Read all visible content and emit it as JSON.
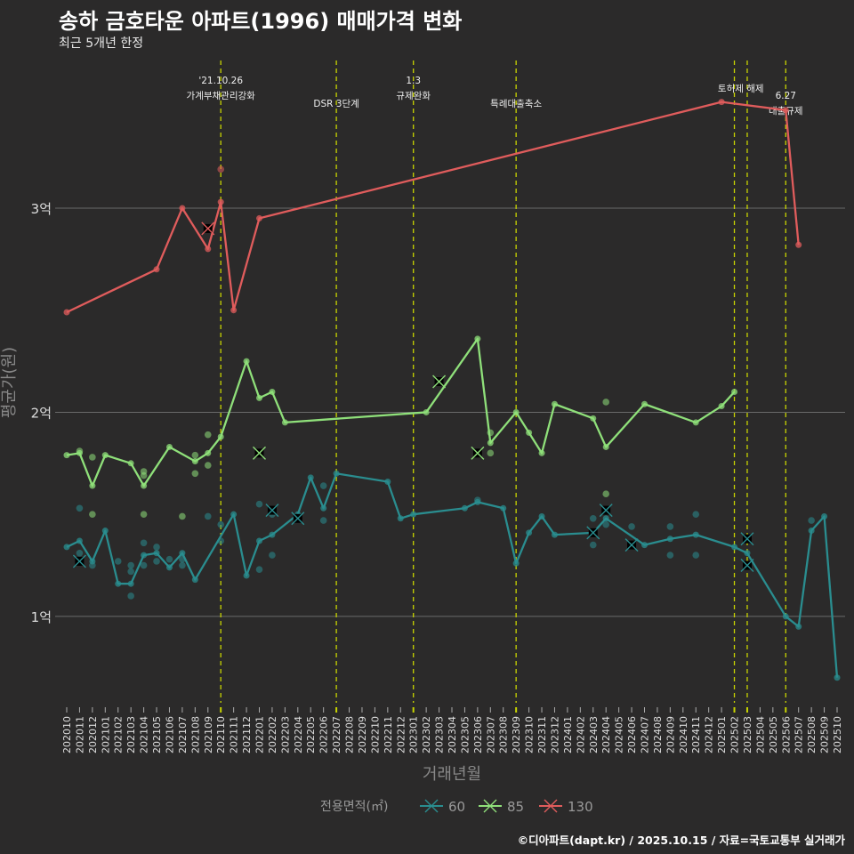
{
  "title": "송하 금호타운 아파트(1996) 매매가격 변화",
  "subtitle": "최근 5개년 한정",
  "footer": "©디아파트(dapt.kr) / 2025.10.15 / 자료=국토교통부 실거래가",
  "chart_data": {
    "type": "line",
    "xlabel": "거래년월",
    "ylabel": "평균가(원)",
    "ylim": [
      0.577,
      3.758
    ],
    "y_ticks": [
      {
        "v": 1,
        "label": "1억"
      },
      {
        "v": 2,
        "label": "2억"
      },
      {
        "v": 3,
        "label": "3억"
      }
    ],
    "x": [
      "202010",
      "202011",
      "202012",
      "202101",
      "202102",
      "202103",
      "202104",
      "202105",
      "202106",
      "202107",
      "202108",
      "202109",
      "202110",
      "202111",
      "202112",
      "202201",
      "202202",
      "202203",
      "202204",
      "202205",
      "202206",
      "202207",
      "202208",
      "202209",
      "202210",
      "202211",
      "202212",
      "202301",
      "202302",
      "202303",
      "202304",
      "202305",
      "202306",
      "202307",
      "202308",
      "202309",
      "202310",
      "202311",
      "202312",
      "202401",
      "202402",
      "202403",
      "202404",
      "202405",
      "202406",
      "202407",
      "202408",
      "202409",
      "202410",
      "202411",
      "202412",
      "202501",
      "202502",
      "202503",
      "202504",
      "202505",
      "202506",
      "202507",
      "202508",
      "202509",
      "202510"
    ],
    "legend": {
      "title": "전용면적(㎡)",
      "position": "bottom"
    },
    "series": [
      {
        "name": "60",
        "color": "#2a8d8f",
        "points": [
          [
            0,
            1.34
          ],
          [
            1,
            1.37
          ],
          [
            2,
            1.27
          ],
          [
            3,
            1.42
          ],
          [
            4,
            1.16
          ],
          [
            5,
            1.16
          ],
          [
            6,
            1.3
          ],
          [
            7,
            1.31
          ],
          [
            8,
            1.24
          ],
          [
            9,
            1.31
          ],
          [
            10,
            1.18
          ],
          [
            13,
            1.5
          ],
          [
            14,
            1.2
          ],
          [
            15,
            1.37
          ],
          [
            16,
            1.4
          ],
          [
            18,
            1.5
          ],
          [
            19,
            1.68
          ],
          [
            20,
            1.53
          ],
          [
            21,
            1.7
          ],
          [
            25,
            1.66
          ],
          [
            26,
            1.48
          ],
          [
            27,
            1.5
          ],
          [
            31,
            1.53
          ],
          [
            32,
            1.56
          ],
          [
            34,
            1.53
          ],
          [
            35,
            1.26
          ],
          [
            36,
            1.41
          ],
          [
            37,
            1.49
          ],
          [
            38,
            1.4
          ],
          [
            41,
            1.41
          ],
          [
            42,
            1.48
          ],
          [
            45,
            1.35
          ],
          [
            47,
            1.38
          ],
          [
            49,
            1.4
          ],
          [
            52,
            1.34
          ],
          [
            53,
            1.31
          ],
          [
            56,
            1.0
          ],
          [
            57,
            0.95
          ],
          [
            58,
            1.42
          ],
          [
            59,
            1.49
          ],
          [
            60,
            0.7
          ]
        ],
        "scatter": [
          [
            1,
            1.53
          ],
          [
            1,
            1.31
          ],
          [
            2,
            1.25
          ],
          [
            4,
            1.27
          ],
          [
            5,
            1.25
          ],
          [
            5,
            1.22
          ],
          [
            5,
            1.1
          ],
          [
            6,
            1.36
          ],
          [
            6,
            1.25
          ],
          [
            7,
            1.34
          ],
          [
            7,
            1.27
          ],
          [
            8,
            1.28
          ],
          [
            9,
            1.28
          ],
          [
            9,
            1.25
          ],
          [
            11,
            1.49
          ],
          [
            12,
            1.45
          ],
          [
            12,
            1.37
          ],
          [
            15,
            1.55
          ],
          [
            15,
            1.23
          ],
          [
            16,
            1.3
          ],
          [
            16,
            1.5
          ],
          [
            20,
            1.47
          ],
          [
            20,
            1.64
          ],
          [
            32,
            1.57
          ],
          [
            41,
            1.48
          ],
          [
            41,
            1.35
          ],
          [
            42,
            1.45
          ],
          [
            44,
            1.44
          ],
          [
            47,
            1.44
          ],
          [
            47,
            1.3
          ],
          [
            49,
            1.5
          ],
          [
            49,
            1.3
          ],
          [
            58,
            1.47
          ]
        ],
        "x_marks": [
          [
            1,
            1.27
          ],
          [
            16,
            1.52
          ],
          [
            18,
            1.48
          ],
          [
            41,
            1.41
          ],
          [
            42,
            1.52
          ],
          [
            44,
            1.35
          ],
          [
            53,
            1.38
          ],
          [
            53,
            1.25
          ]
        ]
      },
      {
        "name": "85",
        "color": "#8fe07a",
        "points": [
          [
            0,
            1.79
          ],
          [
            1,
            1.8
          ],
          [
            2,
            1.64
          ],
          [
            3,
            1.79
          ],
          [
            5,
            1.75
          ],
          [
            6,
            1.64
          ],
          [
            8,
            1.83
          ],
          [
            10,
            1.76
          ],
          [
            11,
            1.8
          ],
          [
            12,
            1.88
          ],
          [
            14,
            2.25
          ],
          [
            15,
            2.07
          ],
          [
            16,
            2.1
          ],
          [
            17,
            1.95
          ],
          [
            28,
            2.0
          ],
          [
            32,
            2.36
          ],
          [
            33,
            1.85
          ],
          [
            35,
            2.0
          ],
          [
            36,
            1.9
          ],
          [
            37,
            1.8
          ],
          [
            38,
            2.04
          ],
          [
            41,
            1.97
          ],
          [
            42,
            1.83
          ],
          [
            45,
            2.04
          ],
          [
            49,
            1.95
          ],
          [
            51,
            2.03
          ],
          [
            52,
            2.1
          ]
        ],
        "scatter": [
          [
            1,
            1.81
          ],
          [
            2,
            1.78
          ],
          [
            2,
            1.5
          ],
          [
            6,
            1.71
          ],
          [
            6,
            1.69
          ],
          [
            6,
            1.5
          ],
          [
            9,
            1.49
          ],
          [
            10,
            1.79
          ],
          [
            10,
            1.7
          ],
          [
            11,
            1.89
          ],
          [
            11,
            1.74
          ],
          [
            33,
            1.9
          ],
          [
            33,
            1.8
          ],
          [
            42,
            2.05
          ],
          [
            42,
            1.6
          ]
        ],
        "x_marks": [
          [
            15,
            1.8
          ],
          [
            29,
            2.15
          ],
          [
            32,
            1.8
          ]
        ]
      },
      {
        "name": "130",
        "color": "#e05c5c",
        "points": [
          [
            0,
            2.49
          ],
          [
            7,
            2.7
          ],
          [
            9,
            3.0
          ],
          [
            11,
            2.8
          ],
          [
            12,
            3.03
          ],
          [
            13,
            2.5
          ],
          [
            15,
            2.95
          ],
          [
            51,
            3.52
          ],
          [
            56,
            3.48
          ],
          [
            57,
            2.82
          ]
        ],
        "scatter": [
          [
            12,
            3.19
          ]
        ],
        "x_marks": [
          [
            11,
            2.9
          ]
        ]
      }
    ],
    "annotations": [
      {
        "x_index": 12,
        "lines": [
          "'21.10.26",
          "가계부채관리강화"
        ]
      },
      {
        "x_index": 21,
        "lines": [
          "DSR 3단계"
        ]
      },
      {
        "x_index": 27,
        "lines": [
          "1.3",
          "규제완화"
        ]
      },
      {
        "x_index": 35,
        "lines": [
          "특례대출축소"
        ]
      },
      {
        "x_index": 52.5,
        "lines": [
          "토허제 해제"
        ]
      },
      {
        "x_index": 56,
        "lines": [
          "6.27",
          "대출규제"
        ]
      }
    ],
    "vlines": [
      12,
      21,
      27,
      35,
      52,
      53,
      56
    ]
  }
}
